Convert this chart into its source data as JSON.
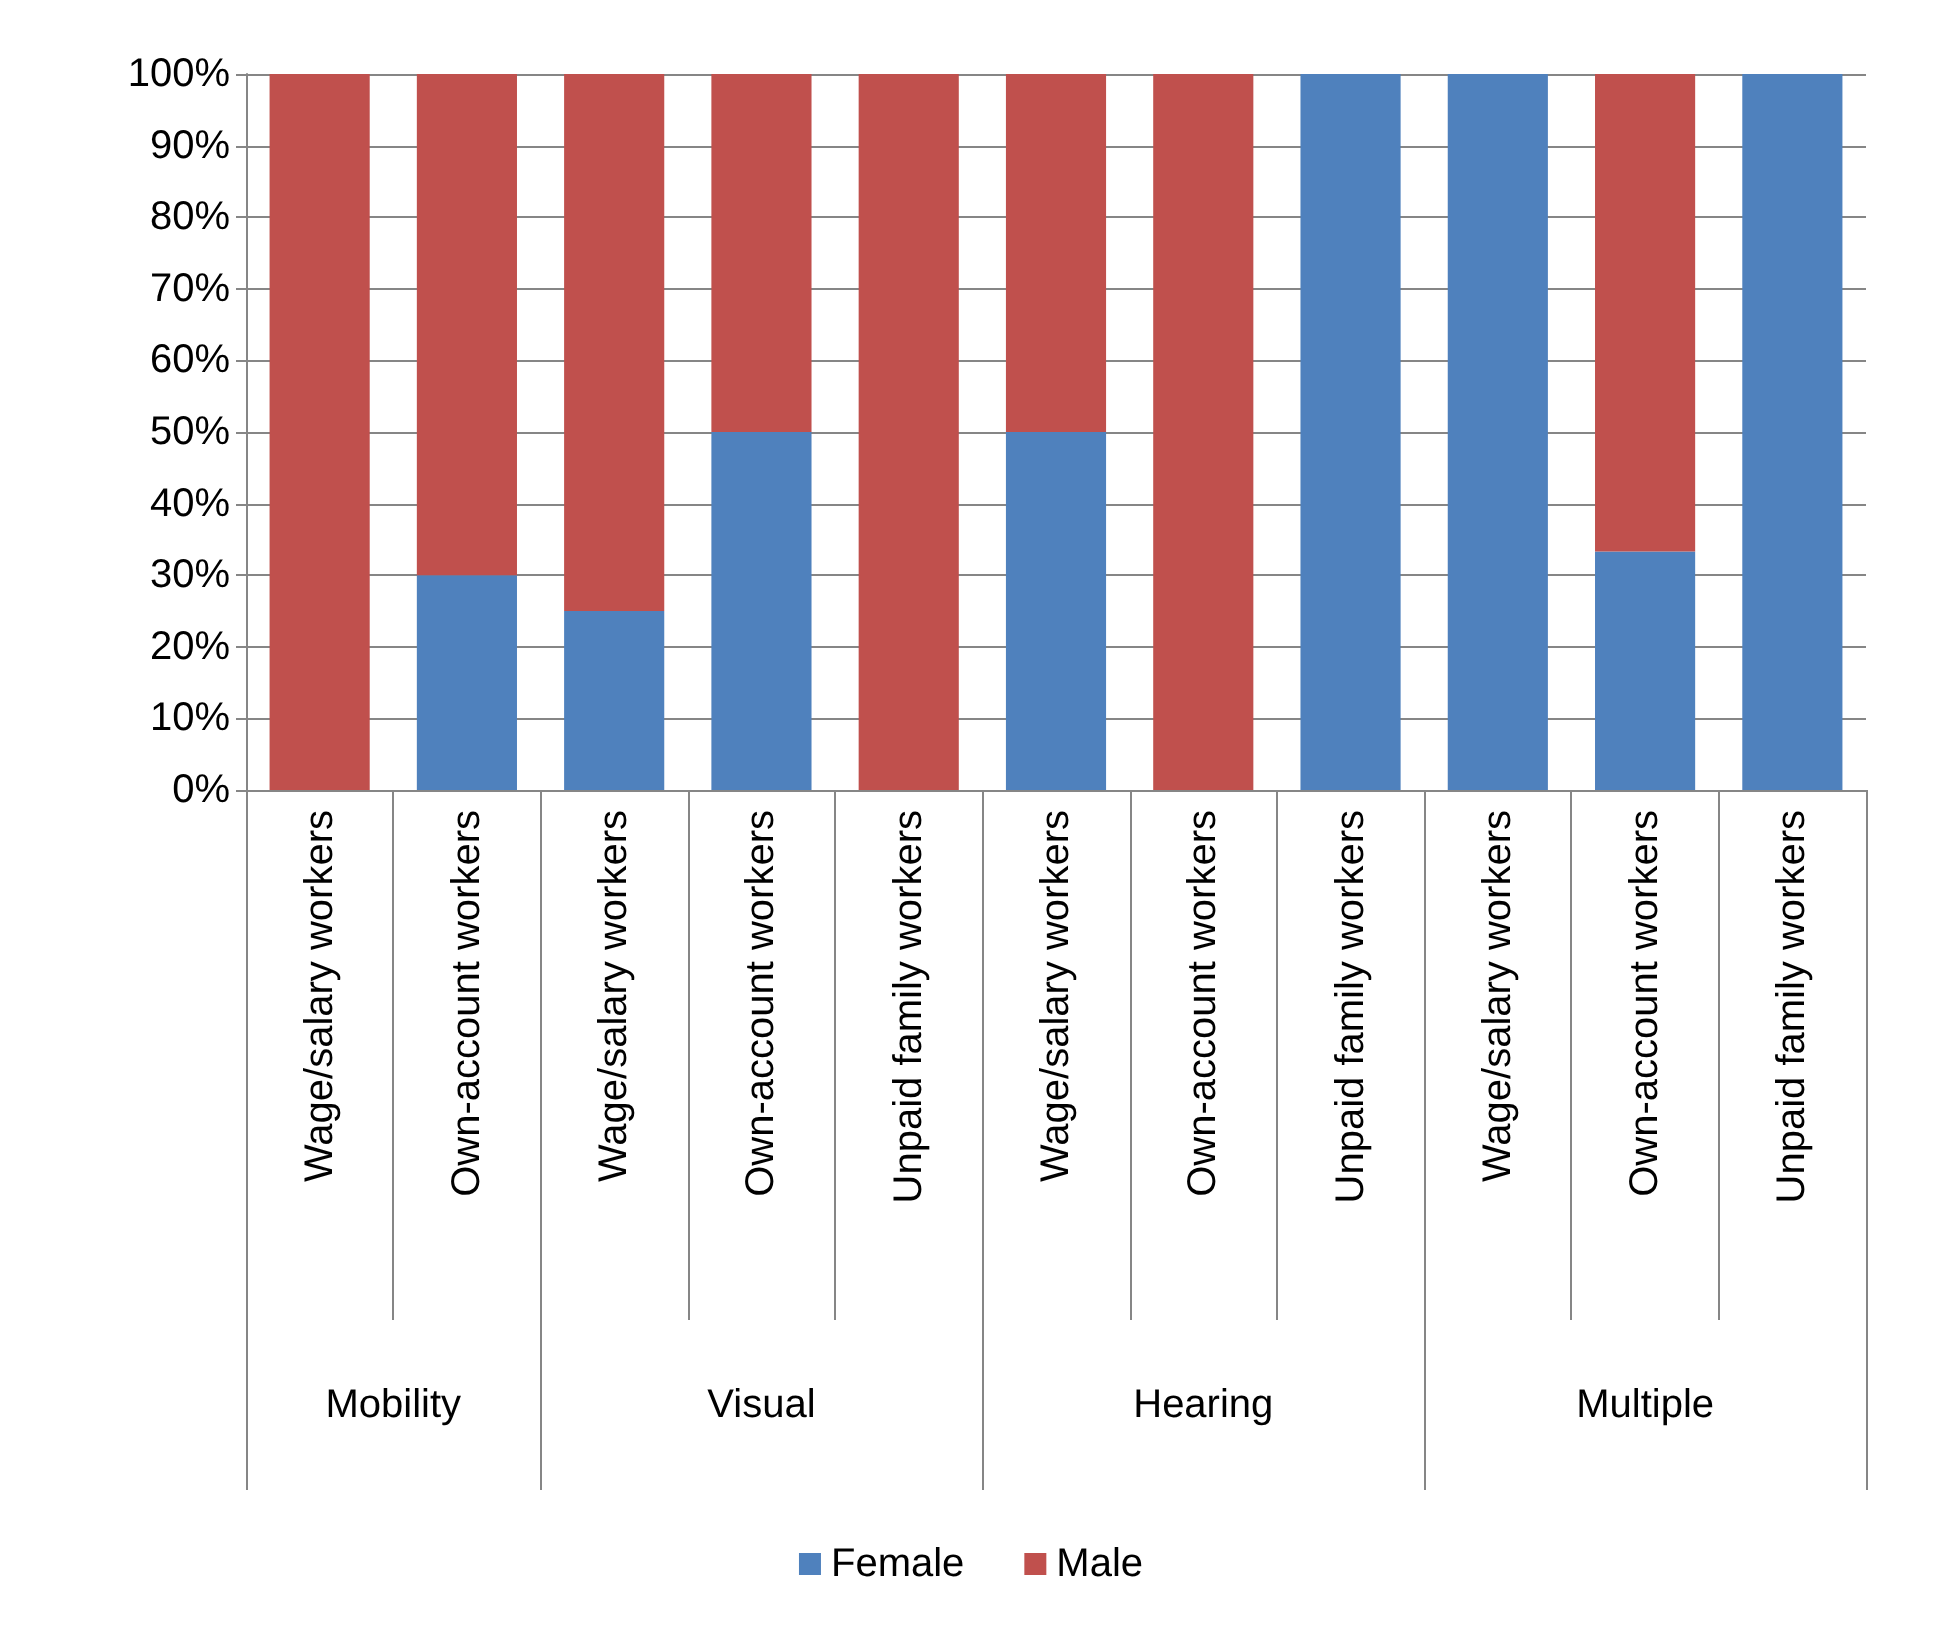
{
  "chart_data": {
    "type": "bar",
    "stacked": true,
    "categories": [
      "Wage/salary workers",
      "Own-account workers",
      "Wage/salary workers",
      "Own-account workers",
      "Unpaid family workers",
      "Wage/salary workers",
      "Own-account workers",
      "Unpaid family workers",
      "Wage/salary workers",
      "Own-account workers",
      "Unpaid family workers"
    ],
    "series": [
      {
        "name": "Female",
        "color": "#4f81bd",
        "values": [
          0,
          30,
          25,
          50,
          0,
          50,
          0,
          100,
          100,
          33.3,
          100
        ]
      },
      {
        "name": "Male",
        "color": "#c0504d",
        "values": [
          100,
          70,
          75,
          50,
          100,
          50,
          100,
          0,
          0,
          66.7,
          0
        ]
      }
    ],
    "annotations": [
      "Mobility",
      "Visual",
      "Hearing",
      "Multiple"
    ],
    "ylim": [
      0,
      100
    ],
    "yticks": [
      {
        "value": 0,
        "label": "0%"
      },
      {
        "value": 10,
        "label": "10%"
      },
      {
        "value": 20,
        "label": "20%"
      },
      {
        "value": 30,
        "label": "30%"
      },
      {
        "value": 40,
        "label": "40%"
      },
      {
        "value": 50,
        "label": "50%"
      },
      {
        "value": 60,
        "label": "60%"
      },
      {
        "value": 70,
        "label": "70%"
      },
      {
        "value": 80,
        "label": "80%"
      },
      {
        "value": 90,
        "label": "90%"
      },
      {
        "value": 100,
        "label": "100%"
      }
    ],
    "grid": "y",
    "legend": "bottom"
  }
}
